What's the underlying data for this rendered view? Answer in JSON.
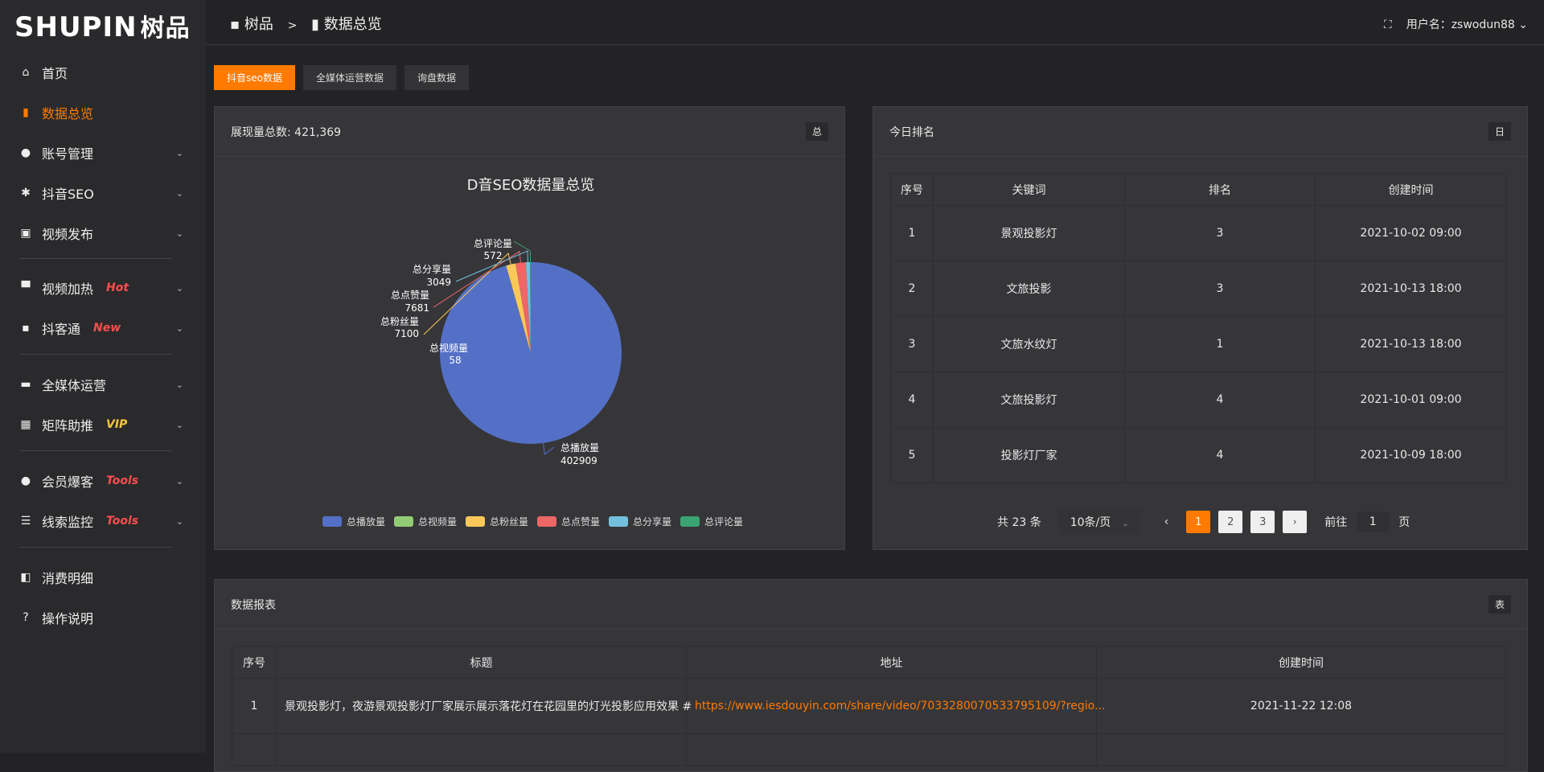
{
  "brand": {
    "logo_text": "SHUPIN",
    "logo_cn": "树品"
  },
  "sidebar": {
    "items": [
      {
        "label": "首页",
        "icon": "home-icon"
      },
      {
        "label": "数据总览",
        "icon": "bar-chart-icon",
        "active": true
      },
      {
        "label": "账号管理",
        "icon": "user-icon"
      },
      {
        "label": "抖音SEO",
        "icon": "gear-icon"
      },
      {
        "label": "视频发布",
        "icon": "camera-icon"
      },
      {
        "label": "视频加热",
        "icon": "flag-icon",
        "tag": "Hot"
      },
      {
        "label": "抖客通",
        "icon": "chat-icon",
        "tag": "New"
      },
      {
        "label": "全媒体运营",
        "icon": "monitor-icon"
      },
      {
        "label": "矩阵助推",
        "icon": "grid-icon",
        "tag": "VIP"
      },
      {
        "label": "会员爆客",
        "icon": "user-icon",
        "tag": "Tools"
      },
      {
        "label": "线索监控",
        "icon": "sliders-icon",
        "tag": "Tools"
      },
      {
        "label": "消费明细",
        "icon": "wallet-icon"
      },
      {
        "label": "操作说明",
        "icon": "help-icon"
      }
    ]
  },
  "header": {
    "crumb_home": "树品",
    "crumb_sep": ">",
    "crumb_current": "数据总览",
    "user_label": "用户名：zswodun88"
  },
  "tabs": [
    "抖音seo数据",
    "全媒体运营数据",
    "询盘数据"
  ],
  "pie_card": {
    "title": "展现量总数: 421,369",
    "badge": "总"
  },
  "chart_data": {
    "type": "pie",
    "title": "D音SEO数据量总览",
    "legend_position": "bottom",
    "slices": [
      {
        "name": "总播放量",
        "value": 402909,
        "color": "#5470c6"
      },
      {
        "name": "总视频量",
        "value": 58,
        "color": "#91cc75"
      },
      {
        "name": "总粉丝量",
        "value": 7100,
        "color": "#fac858"
      },
      {
        "name": "总点赞量",
        "value": 7681,
        "color": "#ee6666"
      },
      {
        "name": "总分享量",
        "value": 3049,
        "color": "#73c0de"
      },
      {
        "name": "总评论量",
        "value": 572,
        "color": "#3ba272"
      }
    ]
  },
  "rank_card": {
    "title": "今日排名",
    "badge": "日",
    "columns": [
      "序号",
      "关键词",
      "排名",
      "创建时间"
    ],
    "rows": [
      [
        "1",
        "景观投影灯",
        "3",
        "2021-10-02 09:00"
      ],
      [
        "2",
        "文旅投影",
        "3",
        "2021-10-13 18:00"
      ],
      [
        "3",
        "文旅水纹灯",
        "1",
        "2021-10-13 18:00"
      ],
      [
        "4",
        "文旅投影灯",
        "4",
        "2021-10-01 09:00"
      ],
      [
        "5",
        "投影灯厂家",
        "4",
        "2021-10-09 18:00"
      ]
    ],
    "pager": {
      "total": "共 23 条",
      "page_size": "10条/页",
      "pages": [
        "1",
        "2",
        "3"
      ],
      "current": "1",
      "goto_label": "前往",
      "goto_value": "1",
      "page_unit": "页"
    }
  },
  "report_card": {
    "title": "数据报表",
    "badge": "表",
    "columns": [
      "序号",
      "标题",
      "地址",
      "创建时间"
    ],
    "rows": [
      [
        "1",
        "景观投影灯，夜游景观投影灯厂家展示展示落花灯在花园里的灯光投影应用效果 #",
        "https://www.iesdouyin.com/share/video/7033280070533795109/?regio...",
        "2021-11-22 12:08"
      ]
    ]
  },
  "colors": {
    "accent": "#ff7a00",
    "hot": "#ff4d4f",
    "vip": "#f5c542"
  }
}
